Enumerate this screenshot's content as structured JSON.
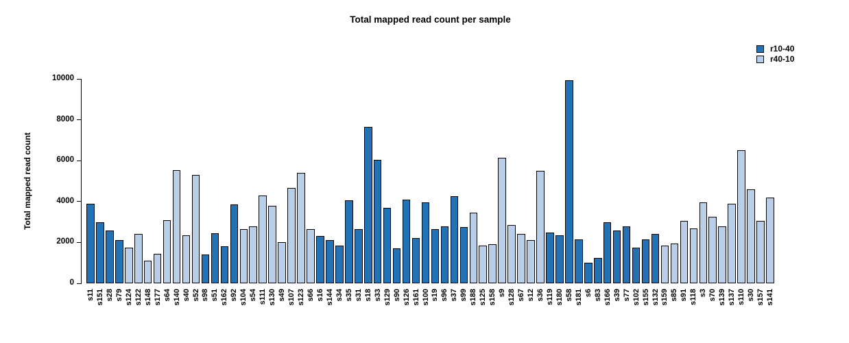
{
  "title": "Total mapped read count per sample",
  "legend": {
    "items": [
      {
        "label": "r10-40",
        "color": "#2173b5"
      },
      {
        "label": "r40-10",
        "color": "#b9cfe9"
      }
    ]
  },
  "chart_data": {
    "type": "bar",
    "title": "Total mapped read count per sample",
    "xlabel": "",
    "ylabel": "Total mapped read count",
    "ylim": [
      0,
      10000
    ],
    "yticks": [
      0,
      2000,
      4000,
      6000,
      8000,
      10000
    ],
    "grid": false,
    "legend_position": "top-right",
    "series": [
      {
        "name": "r10-40",
        "color": "#2173b5"
      },
      {
        "name": "r40-10",
        "color": "#b9cfe9"
      }
    ],
    "categories": [
      "s11",
      "s151",
      "s28",
      "s79",
      "s124",
      "s122",
      "s148",
      "s177",
      "s64",
      "s140",
      "s40",
      "s52",
      "s98",
      "s51",
      "s162",
      "s92",
      "s104",
      "s54",
      "s111",
      "s130",
      "s49",
      "s107",
      "s123",
      "s66",
      "s16",
      "s144",
      "s34",
      "s35",
      "s31",
      "s18",
      "s33",
      "s129",
      "s90",
      "s126",
      "s161",
      "s100",
      "s19",
      "s96",
      "s37",
      "s99",
      "s188",
      "s125",
      "s158",
      "s9",
      "s128",
      "s67",
      "s12",
      "s36",
      "s119",
      "s180",
      "s58",
      "s181",
      "s6",
      "s83",
      "s166",
      "s39",
      "s77",
      "s102",
      "s155",
      "s132",
      "s159",
      "s85",
      "s91",
      "s118",
      "s3",
      "s70",
      "s139",
      "s137",
      "s110",
      "s30",
      "s157",
      "s141"
    ],
    "samples": [
      {
        "label": "s11",
        "group": "r10-40",
        "value": 3900
      },
      {
        "label": "s151",
        "group": "r10-40",
        "value": 3000
      },
      {
        "label": "s28",
        "group": "r10-40",
        "value": 2600
      },
      {
        "label": "s79",
        "group": "r10-40",
        "value": 2100
      },
      {
        "label": "s124",
        "group": "r40-10",
        "value": 1750
      },
      {
        "label": "s122",
        "group": "r40-10",
        "value": 2400
      },
      {
        "label": "s148",
        "group": "r40-10",
        "value": 1100
      },
      {
        "label": "s177",
        "group": "r40-10",
        "value": 1450
      },
      {
        "label": "s64",
        "group": "r40-10",
        "value": 3100
      },
      {
        "label": "s140",
        "group": "r40-10",
        "value": 5550
      },
      {
        "label": "s40",
        "group": "r40-10",
        "value": 2350
      },
      {
        "label": "s52",
        "group": "r40-10",
        "value": 5300
      },
      {
        "label": "s98",
        "group": "r10-40",
        "value": 1400
      },
      {
        "label": "s51",
        "group": "r10-40",
        "value": 2450
      },
      {
        "label": "s162",
        "group": "r10-40",
        "value": 1800
      },
      {
        "label": "s92",
        "group": "r10-40",
        "value": 3850
      },
      {
        "label": "s104",
        "group": "r40-10",
        "value": 2650
      },
      {
        "label": "s54",
        "group": "r40-10",
        "value": 2800
      },
      {
        "label": "s111",
        "group": "r40-10",
        "value": 4300
      },
      {
        "label": "s130",
        "group": "r40-10",
        "value": 3800
      },
      {
        "label": "s49",
        "group": "r40-10",
        "value": 2000
      },
      {
        "label": "s107",
        "group": "r40-10",
        "value": 4650
      },
      {
        "label": "s123",
        "group": "r40-10",
        "value": 5400
      },
      {
        "label": "s66",
        "group": "r40-10",
        "value": 2650
      },
      {
        "label": "s16",
        "group": "r10-40",
        "value": 2300
      },
      {
        "label": "s144",
        "group": "r10-40",
        "value": 2100
      },
      {
        "label": "s34",
        "group": "r10-40",
        "value": 1850
      },
      {
        "label": "s35",
        "group": "r10-40",
        "value": 4050
      },
      {
        "label": "s31",
        "group": "r10-40",
        "value": 2650
      },
      {
        "label": "s18",
        "group": "r10-40",
        "value": 7650
      },
      {
        "label": "s33",
        "group": "r10-40",
        "value": 6050
      },
      {
        "label": "s129",
        "group": "r10-40",
        "value": 3700
      },
      {
        "label": "s90",
        "group": "r10-40",
        "value": 1700
      },
      {
        "label": "s126",
        "group": "r10-40",
        "value": 4100
      },
      {
        "label": "s161",
        "group": "r10-40",
        "value": 2200
      },
      {
        "label": "s100",
        "group": "r10-40",
        "value": 3950
      },
      {
        "label": "s19",
        "group": "r10-40",
        "value": 2650
      },
      {
        "label": "s96",
        "group": "r10-40",
        "value": 2800
      },
      {
        "label": "s37",
        "group": "r10-40",
        "value": 4250
      },
      {
        "label": "s99",
        "group": "r10-40",
        "value": 2750
      },
      {
        "label": "s188",
        "group": "r40-10",
        "value": 3450
      },
      {
        "label": "s125",
        "group": "r40-10",
        "value": 1850
      },
      {
        "label": "s158",
        "group": "r40-10",
        "value": 1900
      },
      {
        "label": "s9",
        "group": "r40-10",
        "value": 6150
      },
      {
        "label": "s128",
        "group": "r40-10",
        "value": 2850
      },
      {
        "label": "s67",
        "group": "r40-10",
        "value": 2400
      },
      {
        "label": "s12",
        "group": "r40-10",
        "value": 2100
      },
      {
        "label": "s36",
        "group": "r40-10",
        "value": 5500
      },
      {
        "label": "s119",
        "group": "r10-40",
        "value": 2500
      },
      {
        "label": "s180",
        "group": "r10-40",
        "value": 2350
      },
      {
        "label": "s58",
        "group": "r10-40",
        "value": 9950
      },
      {
        "label": "s181",
        "group": "r10-40",
        "value": 2150
      },
      {
        "label": "s6",
        "group": "r10-40",
        "value": 1000
      },
      {
        "label": "s83",
        "group": "r10-40",
        "value": 1250
      },
      {
        "label": "s166",
        "group": "r10-40",
        "value": 3000
      },
      {
        "label": "s39",
        "group": "r10-40",
        "value": 2600
      },
      {
        "label": "s77",
        "group": "r10-40",
        "value": 2800
      },
      {
        "label": "s102",
        "group": "r10-40",
        "value": 1750
      },
      {
        "label": "s155",
        "group": "r10-40",
        "value": 2150
      },
      {
        "label": "s132",
        "group": "r10-40",
        "value": 2400
      },
      {
        "label": "s159",
        "group": "r40-10",
        "value": 1850
      },
      {
        "label": "s85",
        "group": "r40-10",
        "value": 1950
      },
      {
        "label": "s91",
        "group": "r40-10",
        "value": 3050
      },
      {
        "label": "s118",
        "group": "r40-10",
        "value": 2700
      },
      {
        "label": "s3",
        "group": "r40-10",
        "value": 3950
      },
      {
        "label": "s70",
        "group": "r40-10",
        "value": 3250
      },
      {
        "label": "s139",
        "group": "r40-10",
        "value": 2800
      },
      {
        "label": "s137",
        "group": "r40-10",
        "value": 3900
      },
      {
        "label": "s110",
        "group": "r40-10",
        "value": 6500
      },
      {
        "label": "s30",
        "group": "r40-10",
        "value": 4600
      },
      {
        "label": "s157",
        "group": "r40-10",
        "value": 3050
      },
      {
        "label": "s141",
        "group": "r40-10",
        "value": 4200
      }
    ]
  }
}
